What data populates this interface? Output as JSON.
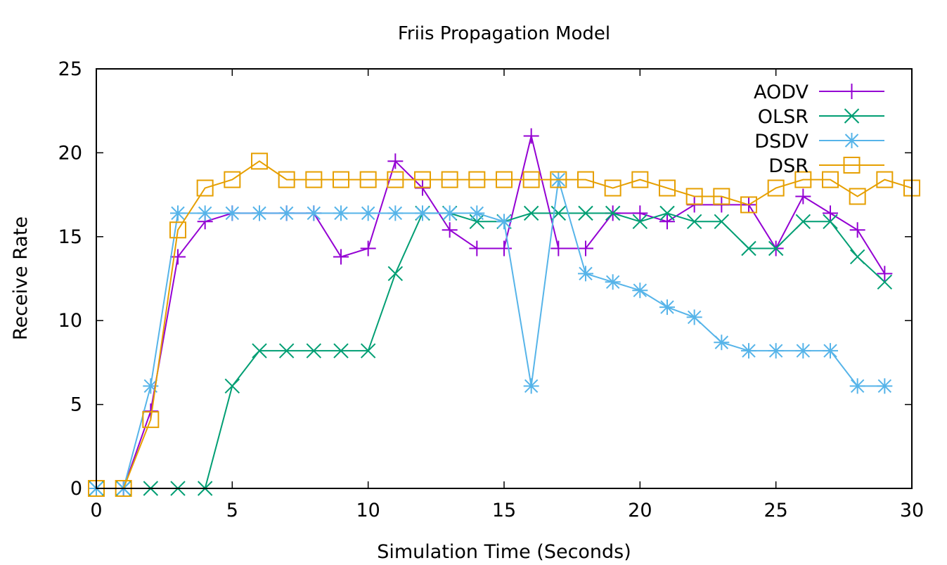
{
  "chart_data": {
    "type": "line",
    "title": "Friis Propagation Model",
    "xlabel": "Simulation Time (Seconds)",
    "ylabel": "Receive Rate",
    "xlim": [
      0,
      30
    ],
    "ylim": [
      0,
      25
    ],
    "xticks": [
      0,
      5,
      10,
      15,
      20,
      25,
      30
    ],
    "yticks": [
      0,
      5,
      10,
      15,
      20,
      25
    ],
    "grid": false,
    "legend_position": "top-right",
    "series": [
      {
        "name": "AODV",
        "color": "#9400d3",
        "marker": "plus",
        "x": [
          0,
          1,
          2,
          3,
          4,
          5,
          6,
          7,
          8,
          9,
          10,
          11,
          12,
          13,
          14,
          15,
          16,
          17,
          18,
          19,
          20,
          21,
          22,
          23,
          24,
          25,
          26,
          27,
          28,
          29
        ],
        "y": [
          0,
          0,
          4.6,
          13.8,
          15.9,
          16.4,
          16.4,
          16.4,
          16.4,
          13.8,
          14.3,
          19.5,
          17.9,
          15.4,
          14.3,
          14.3,
          21.0,
          14.3,
          14.3,
          16.4,
          16.4,
          15.9,
          16.9,
          16.9,
          16.9,
          14.3,
          17.4,
          16.4,
          15.4,
          12.8
        ]
      },
      {
        "name": "OLSR",
        "color": "#009e73",
        "marker": "x",
        "x": [
          0,
          1,
          2,
          3,
          4,
          5,
          6,
          7,
          8,
          9,
          10,
          11,
          12,
          13,
          14,
          15,
          16,
          17,
          18,
          19,
          20,
          21,
          22,
          23,
          24,
          25,
          26,
          27,
          28,
          29
        ],
        "y": [
          0,
          0,
          0,
          0,
          0,
          6.1,
          8.2,
          8.2,
          8.2,
          8.2,
          8.2,
          12.8,
          16.4,
          16.4,
          15.9,
          15.9,
          16.4,
          16.4,
          16.4,
          16.4,
          15.9,
          16.4,
          15.9,
          15.9,
          14.3,
          14.3,
          15.9,
          15.9,
          13.8,
          12.3
        ]
      },
      {
        "name": "DSDV",
        "color": "#56b4e9",
        "marker": "star",
        "x": [
          0,
          1,
          2,
          3,
          4,
          5,
          6,
          7,
          8,
          9,
          10,
          11,
          12,
          13,
          14,
          15,
          16,
          17,
          18,
          19,
          20,
          21,
          22,
          23,
          24,
          25,
          26,
          27,
          28,
          29
        ],
        "y": [
          0,
          0,
          6.1,
          16.4,
          16.4,
          16.4,
          16.4,
          16.4,
          16.4,
          16.4,
          16.4,
          16.4,
          16.4,
          16.4,
          16.4,
          15.9,
          6.1,
          18.4,
          12.8,
          12.3,
          11.8,
          10.8,
          10.2,
          8.7,
          8.2,
          8.2,
          8.2,
          8.2,
          6.1,
          6.1
        ]
      },
      {
        "name": "DSR",
        "color": "#e69f00",
        "marker": "square",
        "x": [
          0,
          1,
          2,
          3,
          4,
          5,
          6,
          7,
          8,
          9,
          10,
          11,
          12,
          13,
          14,
          15,
          16,
          17,
          18,
          19,
          20,
          21,
          22,
          23,
          24,
          25,
          26,
          27,
          28,
          29,
          30
        ],
        "y": [
          0,
          0,
          4.1,
          15.4,
          17.9,
          18.4,
          19.5,
          18.4,
          18.4,
          18.4,
          18.4,
          18.4,
          18.4,
          18.4,
          18.4,
          18.4,
          18.4,
          18.4,
          18.4,
          17.9,
          18.4,
          17.9,
          17.4,
          17.4,
          16.9,
          17.9,
          18.4,
          18.4,
          17.4,
          18.4,
          17.9
        ]
      }
    ]
  }
}
